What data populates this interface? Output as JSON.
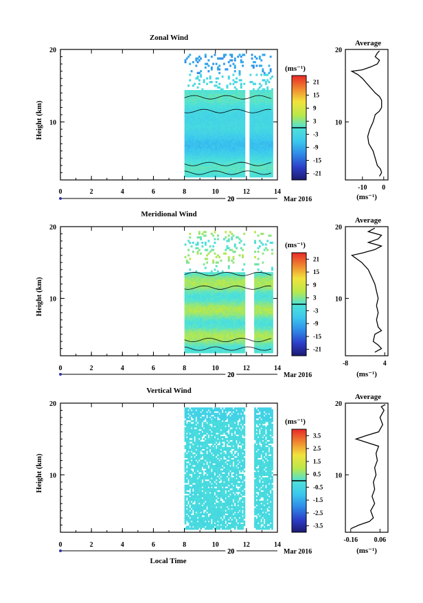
{
  "figure": {
    "xlabel": "Local Time",
    "date_label": "20",
    "month_label": "Mar 2016",
    "avg_title": "Average"
  },
  "chart_data": [
    {
      "type": "heatmap",
      "title": "Zonal Wind",
      "ylabel": "Height (km)",
      "xlim": [
        0,
        14
      ],
      "ylim": [
        2,
        20
      ],
      "xticks": [
        "0",
        "2",
        "4",
        "6",
        "8",
        "10",
        "12",
        "14"
      ],
      "yticks": [
        "10",
        "20"
      ],
      "colorbar": {
        "label": "(ms⁻¹)",
        "range": [
          -24,
          24
        ],
        "ticks": [
          "21",
          "15",
          "9",
          "3",
          "-3",
          "-9",
          "-15",
          "-21"
        ]
      },
      "data_time_range": [
        8,
        13.6
      ],
      "data_gaps": [
        [
          11.8,
          12.1
        ]
      ],
      "profile": {
        "xlim": [
          -18,
          2
        ],
        "xticks": [
          "-10",
          "0"
        ],
        "xlabel": "(ms⁻¹)",
        "points": [
          [
            -2,
            2.5
          ],
          [
            -1,
            3
          ],
          [
            -1.5,
            3.5
          ],
          [
            -3,
            4
          ],
          [
            -4,
            5
          ],
          [
            -5,
            6
          ],
          [
            -7,
            7
          ],
          [
            -7.5,
            8
          ],
          [
            -6.5,
            9
          ],
          [
            -5,
            10
          ],
          [
            -4.5,
            10.5
          ],
          [
            -4,
            11
          ],
          [
            -2,
            11.5
          ],
          [
            -1,
            12
          ],
          [
            -1,
            13
          ],
          [
            -2,
            13.5
          ],
          [
            -4,
            14
          ],
          [
            -7,
            15
          ],
          [
            -10,
            16
          ],
          [
            -12,
            16.5
          ],
          [
            -15,
            17
          ],
          [
            -10,
            17.2
          ],
          [
            -6,
            17.6
          ],
          [
            -3,
            18
          ],
          [
            -2,
            18.5
          ],
          [
            -4,
            19
          ],
          [
            -3,
            19.5
          ],
          [
            -2,
            19.8
          ]
        ]
      }
    },
    {
      "type": "heatmap",
      "title": "Meridional Wind",
      "ylabel": "Height (km)",
      "xlim": [
        0,
        14
      ],
      "ylim": [
        2,
        20
      ],
      "xticks": [
        "0",
        "2",
        "4",
        "6",
        "8",
        "10",
        "12",
        "14"
      ],
      "yticks": [
        "10",
        "20"
      ],
      "colorbar": {
        "label": "(ms⁻¹)",
        "range": [
          -24,
          24
        ],
        "ticks": [
          "21",
          "15",
          "9",
          "3",
          "-3",
          "-9",
          "-15",
          "-21"
        ]
      },
      "data_time_range": [
        8,
        13.6
      ],
      "data_gaps": [
        [
          11.8,
          12.4
        ]
      ],
      "profile": {
        "xlim": [
          -8,
          5
        ],
        "xticks": [
          "-8",
          "4"
        ],
        "xlabel": "(ms⁻¹)",
        "points": [
          [
            1,
            2.5
          ],
          [
            3,
            3
          ],
          [
            2,
            3.5
          ],
          [
            0.5,
            4
          ],
          [
            1,
            5
          ],
          [
            3,
            5.5
          ],
          [
            2,
            6
          ],
          [
            1.5,
            7
          ],
          [
            2,
            8
          ],
          [
            1.5,
            9
          ],
          [
            2,
            10
          ],
          [
            1.5,
            11
          ],
          [
            1,
            12
          ],
          [
            0,
            13
          ],
          [
            -1,
            14
          ],
          [
            -3,
            15
          ],
          [
            -6,
            16
          ],
          [
            -3,
            16.3
          ],
          [
            1,
            16.8
          ],
          [
            3,
            17.3
          ],
          [
            -1,
            17.8
          ],
          [
            2,
            18.3
          ],
          [
            3,
            18.8
          ],
          [
            -1,
            19.3
          ],
          [
            1,
            19.8
          ]
        ]
      }
    },
    {
      "type": "heatmap",
      "title": "Vertical Wind",
      "ylabel": "Height (km)",
      "xlim": [
        0,
        14
      ],
      "ylim": [
        2,
        20
      ],
      "xticks": [
        "0",
        "2",
        "4",
        "6",
        "8",
        "10",
        "12",
        "14"
      ],
      "yticks": [
        "10",
        "20"
      ],
      "colorbar": {
        "label": "(ms⁻¹)",
        "range": [
          -4,
          4
        ],
        "ticks": [
          "3.5",
          "2.5",
          "1.5",
          "0.5",
          "-0.5",
          "-1.5",
          "-2.5",
          "-3.5"
        ]
      },
      "data_time_range": [
        8,
        13.6
      ],
      "data_gaps": [
        [
          11.8,
          12.4
        ]
      ],
      "profile": {
        "xlim": [
          -0.2,
          0.12
        ],
        "xticks": [
          "-0.16",
          "0.06"
        ],
        "xlabel": "(ms⁻¹)",
        "points": [
          [
            -0.16,
            2.5
          ],
          [
            -0.1,
            3
          ],
          [
            -0.02,
            3.5
          ],
          [
            0.01,
            4
          ],
          [
            -0.01,
            5
          ],
          [
            0.02,
            6
          ],
          [
            0,
            7
          ],
          [
            0.02,
            8
          ],
          [
            0.01,
            9
          ],
          [
            0.03,
            10
          ],
          [
            0.02,
            11
          ],
          [
            0.04,
            12
          ],
          [
            0.03,
            13
          ],
          [
            0.05,
            14
          ],
          [
            -0.12,
            15
          ],
          [
            -0.04,
            15.5
          ],
          [
            0.05,
            16
          ],
          [
            0.08,
            17
          ],
          [
            0.06,
            18
          ],
          [
            0.09,
            19
          ],
          [
            0.07,
            19.5
          ],
          [
            0.1,
            19.8
          ]
        ]
      }
    }
  ]
}
